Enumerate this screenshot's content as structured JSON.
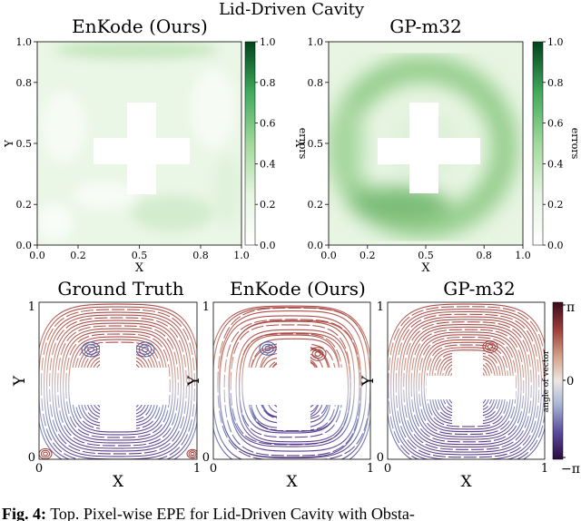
{
  "figure": {
    "suptitle": "Lid-Driven Cavity",
    "caption_label": "Fig. 4:",
    "caption_text": "Top. Pixel-wise EPE for Lid-Driven Cavity with Obsta-"
  },
  "chart_data": [
    {
      "type": "heatmap",
      "title": "EnKode (Ours)",
      "xlabel": "X",
      "ylabel": "Y",
      "xlim": [
        0,
        1
      ],
      "ylim": [
        0,
        1
      ],
      "xticks": [
        "0.0",
        "0.2",
        "0.5",
        "0.8",
        "1.0"
      ],
      "yticks": [
        "0.0",
        "0.2",
        "0.5",
        "0.8",
        "1.0"
      ],
      "colorbar": {
        "label": "errors",
        "range": [
          0,
          1
        ],
        "ticks": [
          "0.0",
          "0.2",
          "0.4",
          "0.6",
          "0.8",
          "1.0"
        ],
        "colormap": [
          "#ffffff",
          "#e5f5e0",
          "#a1d99b",
          "#41ab5d",
          "#006d2c"
        ]
      },
      "obstacle": {
        "shape": "cross",
        "x": [
          0.44,
          0.56,
          0.3,
          0.7
        ],
        "y": [
          0.2,
          0.7,
          0.4,
          0.54
        ]
      },
      "error_level": "low"
    },
    {
      "type": "heatmap",
      "title": "GP-m32",
      "xlabel": "X",
      "ylabel": "Y",
      "xlim": [
        0,
        1
      ],
      "ylim": [
        0,
        1
      ],
      "xticks": [
        "0.0",
        "0.2",
        "0.5",
        "0.8",
        "1.0"
      ],
      "yticks": [
        "0.0",
        "0.2",
        "0.5",
        "0.8",
        "1.0"
      ],
      "colorbar": {
        "label": "errors",
        "range": [
          0,
          1
        ],
        "ticks": [
          "0.0",
          "0.2",
          "0.4",
          "0.6",
          "0.8",
          "1.0"
        ],
        "colormap": [
          "#ffffff",
          "#e5f5e0",
          "#a1d99b",
          "#41ab5d",
          "#006d2c"
        ]
      },
      "obstacle": {
        "shape": "cross",
        "x": [
          0.44,
          0.56,
          0.3,
          0.7
        ],
        "y": [
          0.2,
          0.7,
          0.4,
          0.54
        ]
      },
      "error_level": "high"
    },
    {
      "type": "streamline",
      "title": "Ground Truth",
      "xlabel": "X",
      "ylabel": "Y",
      "xticks": [
        "0",
        "1"
      ],
      "yticks": [
        "0",
        "1"
      ],
      "xlim": [
        0,
        1
      ],
      "ylim": [
        0,
        1
      ],
      "obstacle": "cross"
    },
    {
      "type": "streamline",
      "title": "EnKode (Ours)",
      "xlabel": "X",
      "ylabel": "Y",
      "xticks": [
        "0",
        "1"
      ],
      "yticks": [
        "0",
        "1"
      ],
      "xlim": [
        0,
        1
      ],
      "ylim": [
        0,
        1
      ],
      "obstacle": "cross"
    },
    {
      "type": "streamline",
      "title": "GP-m32",
      "xlabel": "X",
      "ylabel": "Y",
      "xticks": [
        "0",
        "1"
      ],
      "yticks": [
        "0",
        "1"
      ],
      "xlim": [
        0,
        1
      ],
      "ylim": [
        0,
        1
      ],
      "obstacle": "cross",
      "colorbar": {
        "label": "angle of vector",
        "top": "π",
        "middle": "0",
        "bottom": "−π",
        "colormap": [
          "#3b0f4f",
          "#5a4a9a",
          "#a7b6d6",
          "#ece7e2",
          "#d6a48a",
          "#9c3d38",
          "#3a0a1e"
        ]
      }
    }
  ]
}
